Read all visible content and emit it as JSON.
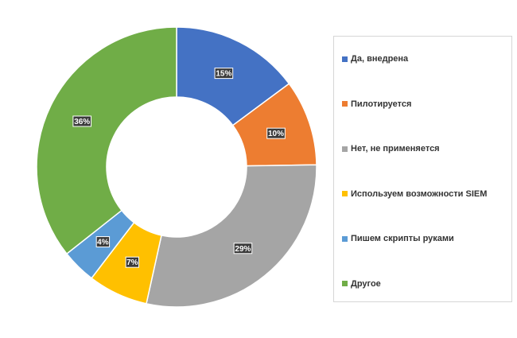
{
  "chart_data": {
    "type": "pie",
    "donut": true,
    "title": "",
    "legend_position": "right",
    "slices": [
      {
        "label": "Да, внедрена",
        "value": 15,
        "display": "15%",
        "color": "#4472C4"
      },
      {
        "label": "Пилотируется",
        "value": 10,
        "display": "10%",
        "color": "#ED7D31"
      },
      {
        "label": "Нет, не применяется",
        "value": 29,
        "display": "29%",
        "color": "#A5A5A5"
      },
      {
        "label": "Используем возможности SIEM",
        "value": 7,
        "display": "7%",
        "color": "#FFC000"
      },
      {
        "label": "Пишем скрипты руками",
        "value": 4,
        "display": "4%",
        "color": "#5B9BD5"
      },
      {
        "label": "Другое",
        "value": 36,
        "display": "36%",
        "color": "#70AD47"
      }
    ]
  }
}
